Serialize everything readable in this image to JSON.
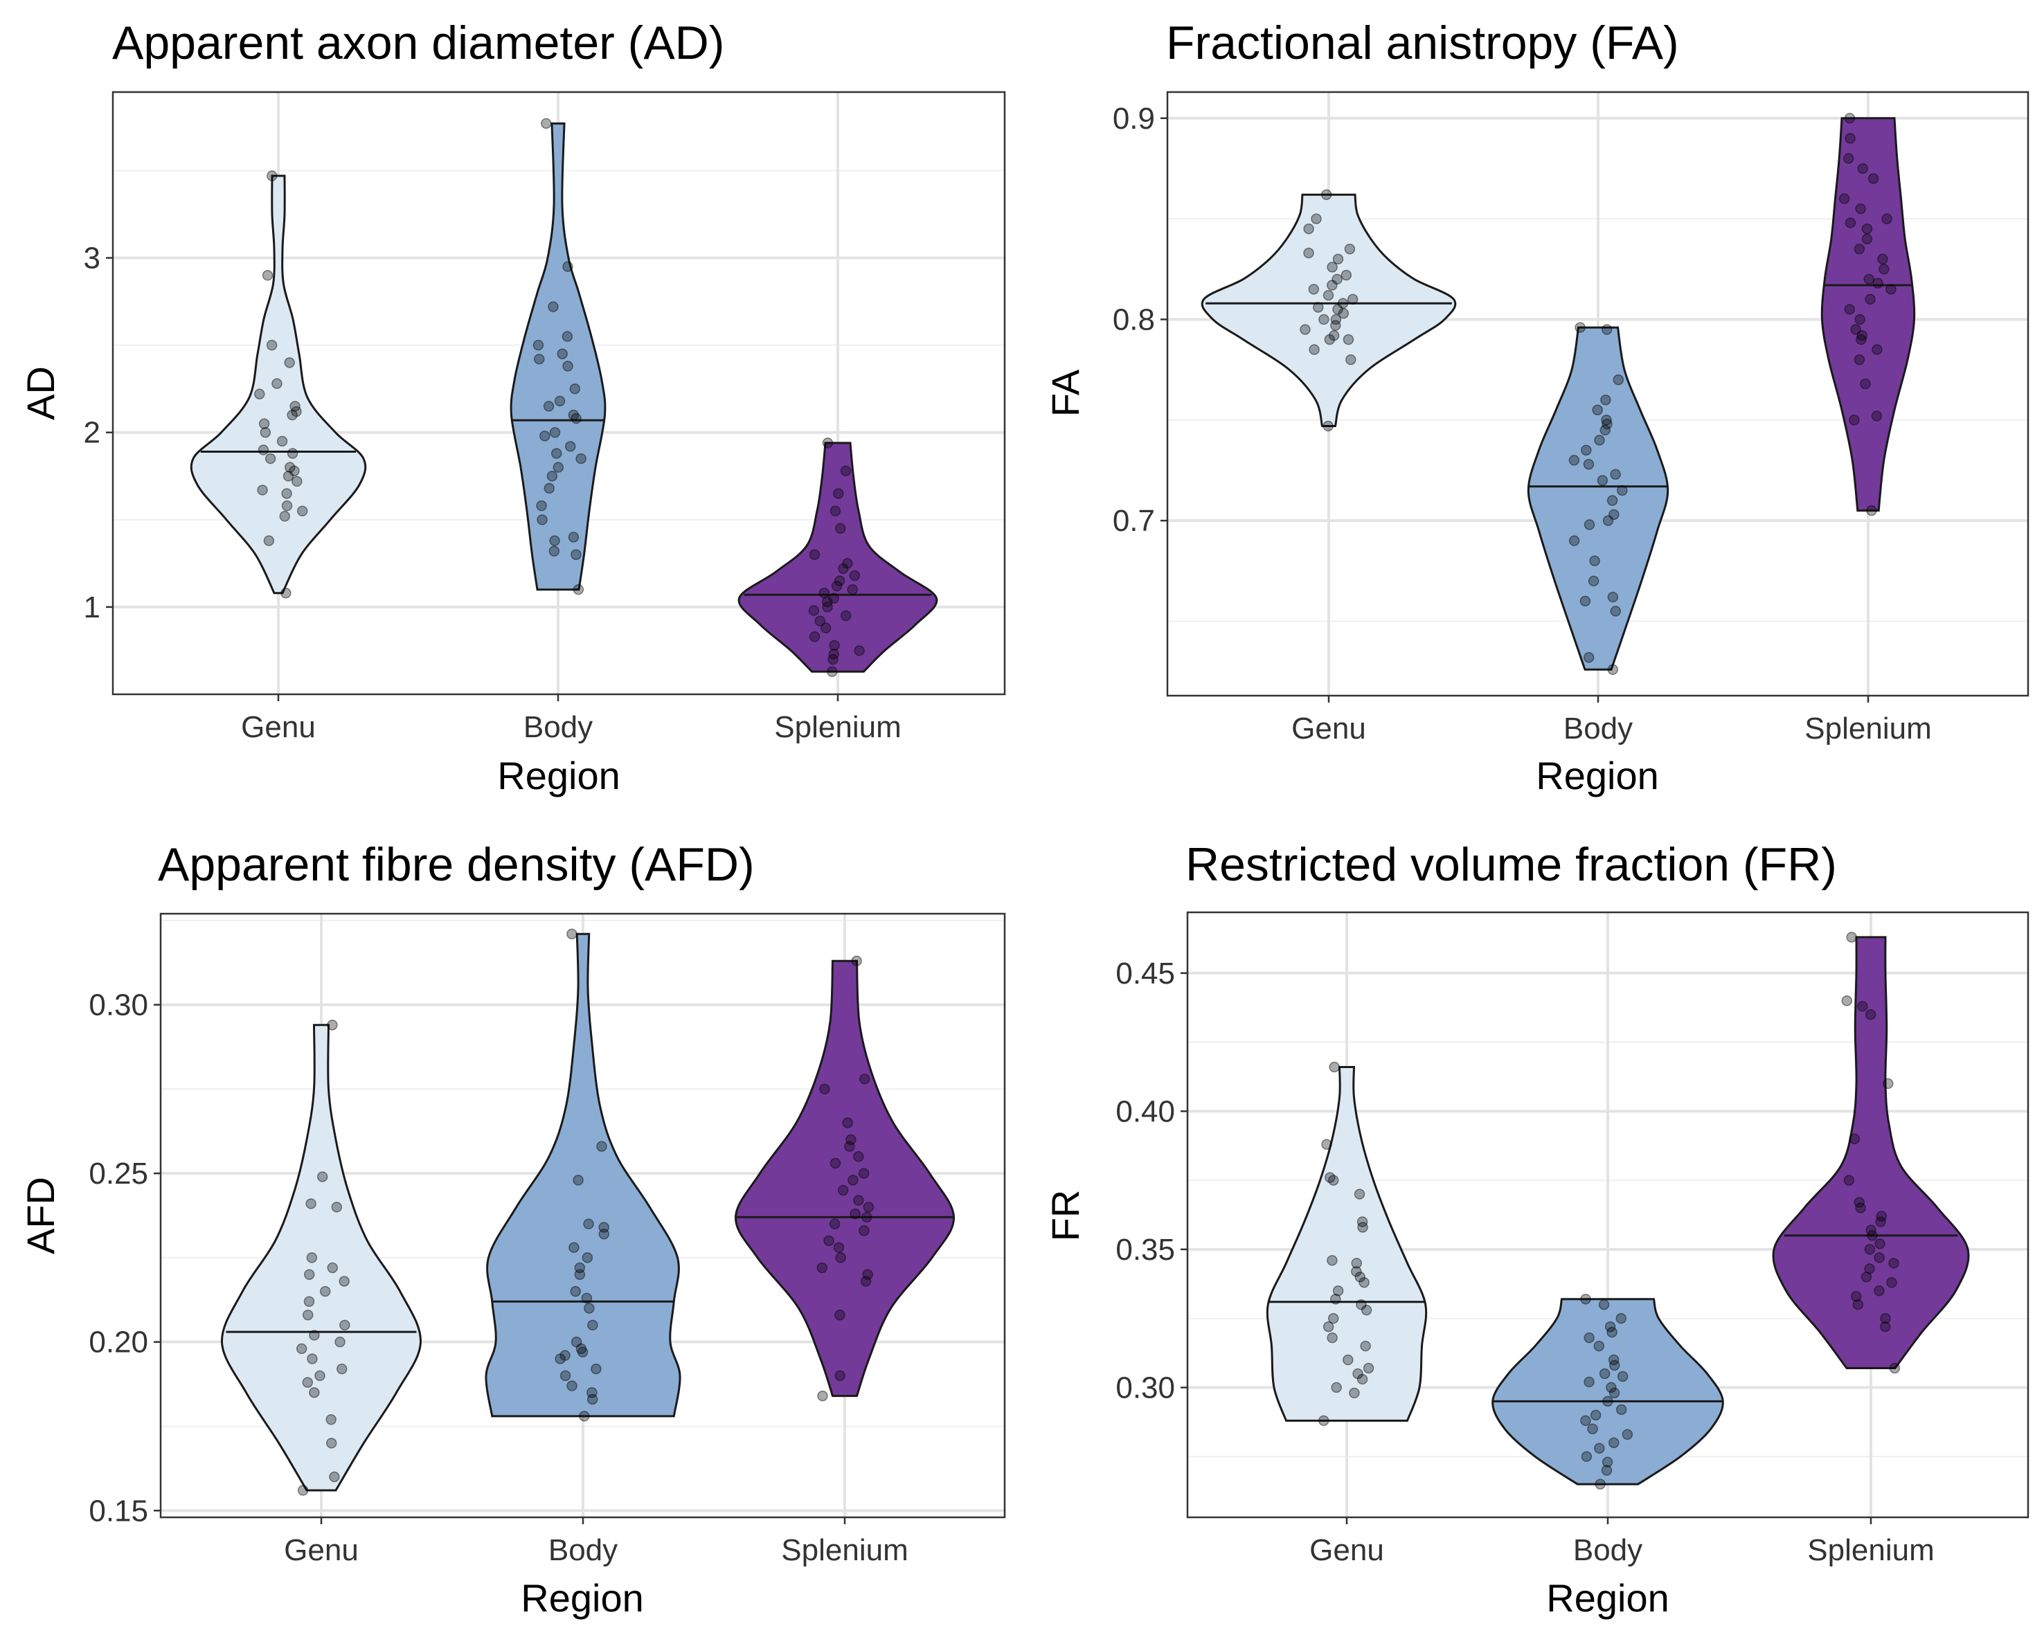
{
  "figure": {
    "panels": [
      {
        "id": "ad",
        "title": "Apparent axon diameter (AD)"
      },
      {
        "id": "fa",
        "title": "Fractional anistropy (FA)"
      },
      {
        "id": "afd",
        "title": "Apparent fibre density (AFD)"
      },
      {
        "id": "fr",
        "title": "Restricted volume fraction (FR)"
      }
    ]
  },
  "colors": {
    "Genu": "#dce9f3",
    "Body": "#8badd3",
    "Splenium": "#733a9a"
  },
  "chart_data": [
    {
      "type": "violin",
      "title": "Apparent axon diameter (AD)",
      "xlabel": "Region",
      "ylabel": "AD",
      "categories": [
        "Genu",
        "Body",
        "Splenium"
      ],
      "ylim": [
        0.5,
        3.95
      ],
      "yticks": [
        1,
        2,
        3
      ],
      "ytick_labels": [
        "1",
        "2",
        "3"
      ],
      "grid": true,
      "series": [
        {
          "name": "Genu",
          "min": 1.08,
          "max": 3.47,
          "median": 1.89,
          "density": [
            [
              1.08,
              0.04
            ],
            [
              1.3,
              0.22
            ],
            [
              1.5,
              0.5
            ],
            [
              1.7,
              0.78
            ],
            [
              1.85,
              0.82
            ],
            [
              2.0,
              0.55
            ],
            [
              2.2,
              0.28
            ],
            [
              2.45,
              0.2
            ],
            [
              2.65,
              0.14
            ],
            [
              2.85,
              0.05
            ],
            [
              3.05,
              0.04
            ],
            [
              3.25,
              0.06
            ],
            [
              3.47,
              0.06
            ]
          ],
          "points": [
            1.08,
            1.38,
            1.52,
            1.55,
            1.58,
            1.65,
            1.67,
            1.72,
            1.75,
            1.78,
            1.8,
            1.85,
            1.88,
            1.9,
            1.95,
            2.0,
            2.05,
            2.1,
            2.12,
            2.15,
            2.22,
            2.28,
            2.4,
            2.5,
            2.9,
            3.47
          ]
        },
        {
          "name": "Body",
          "min": 1.1,
          "max": 3.77,
          "median": 2.07,
          "density": [
            [
              1.1,
              0.2
            ],
            [
              1.3,
              0.25
            ],
            [
              1.55,
              0.3
            ],
            [
              1.8,
              0.36
            ],
            [
              2.1,
              0.45
            ],
            [
              2.3,
              0.42
            ],
            [
              2.55,
              0.32
            ],
            [
              2.8,
              0.2
            ],
            [
              3.0,
              0.1
            ],
            [
              3.3,
              0.04
            ],
            [
              3.77,
              0.06
            ]
          ],
          "points": [
            1.1,
            1.3,
            1.32,
            1.38,
            1.4,
            1.5,
            1.58,
            1.68,
            1.75,
            1.8,
            1.85,
            1.88,
            1.92,
            1.98,
            2.0,
            2.08,
            2.1,
            2.15,
            2.18,
            2.25,
            2.38,
            2.42,
            2.45,
            2.5,
            2.55,
            2.72,
            2.95,
            3.77
          ]
        },
        {
          "name": "Splenium",
          "min": 0.63,
          "max": 1.94,
          "median": 1.07,
          "density": [
            [
              0.63,
              0.25
            ],
            [
              0.75,
              0.45
            ],
            [
              0.9,
              0.75
            ],
            [
              1.05,
              0.95
            ],
            [
              1.2,
              0.6
            ],
            [
              1.35,
              0.3
            ],
            [
              1.55,
              0.2
            ],
            [
              1.75,
              0.15
            ],
            [
              1.94,
              0.12
            ]
          ],
          "points": [
            0.63,
            0.7,
            0.73,
            0.75,
            0.78,
            0.83,
            0.88,
            0.92,
            0.95,
            0.98,
            1.0,
            1.03,
            1.05,
            1.08,
            1.1,
            1.12,
            1.15,
            1.18,
            1.22,
            1.25,
            1.3,
            1.45,
            1.55,
            1.65,
            1.78,
            1.94
          ]
        }
      ]
    },
    {
      "type": "violin",
      "title": "Fractional anistropy (FA)",
      "xlabel": "Region",
      "ylabel": "FA",
      "categories": [
        "Genu",
        "Body",
        "Splenium"
      ],
      "ylim": [
        0.613,
        0.913
      ],
      "yticks": [
        0.7,
        0.8,
        0.9
      ],
      "ytick_labels": [
        "0.7",
        "0.8",
        "0.9"
      ],
      "grid": true,
      "series": [
        {
          "name": "Genu",
          "min": 0.747,
          "max": 0.862,
          "median": 0.808,
          "density": [
            [
              0.747,
              0.05
            ],
            [
              0.76,
              0.1
            ],
            [
              0.775,
              0.3
            ],
            [
              0.79,
              0.65
            ],
            [
              0.8,
              0.88
            ],
            [
              0.81,
              0.95
            ],
            [
              0.82,
              0.65
            ],
            [
              0.83,
              0.45
            ],
            [
              0.84,
              0.32
            ],
            [
              0.852,
              0.22
            ],
            [
              0.862,
              0.2
            ]
          ],
          "points": [
            0.747,
            0.78,
            0.785,
            0.79,
            0.79,
            0.792,
            0.795,
            0.797,
            0.8,
            0.8,
            0.803,
            0.805,
            0.806,
            0.808,
            0.81,
            0.812,
            0.815,
            0.817,
            0.82,
            0.822,
            0.826,
            0.83,
            0.833,
            0.835,
            0.845,
            0.85,
            0.862
          ]
        },
        {
          "name": "Body",
          "min": 0.626,
          "max": 0.796,
          "median": 0.717,
          "density": [
            [
              0.626,
              0.1
            ],
            [
              0.645,
              0.2
            ],
            [
              0.67,
              0.33
            ],
            [
              0.695,
              0.45
            ],
            [
              0.715,
              0.53
            ],
            [
              0.735,
              0.45
            ],
            [
              0.755,
              0.32
            ],
            [
              0.775,
              0.2
            ],
            [
              0.796,
              0.15
            ]
          ],
          "points": [
            0.626,
            0.632,
            0.655,
            0.66,
            0.662,
            0.67,
            0.68,
            0.69,
            0.698,
            0.7,
            0.703,
            0.71,
            0.715,
            0.72,
            0.723,
            0.728,
            0.73,
            0.735,
            0.74,
            0.745,
            0.748,
            0.75,
            0.755,
            0.76,
            0.77,
            0.795,
            0.796
          ]
        },
        {
          "name": "Splenium",
          "min": 0.705,
          "max": 0.9,
          "median": 0.817,
          "density": [
            [
              0.705,
              0.08
            ],
            [
              0.73,
              0.12
            ],
            [
              0.755,
              0.2
            ],
            [
              0.78,
              0.3
            ],
            [
              0.8,
              0.35
            ],
            [
              0.82,
              0.33
            ],
            [
              0.84,
              0.28
            ],
            [
              0.86,
              0.25
            ],
            [
              0.88,
              0.22
            ],
            [
              0.9,
              0.2
            ]
          ],
          "points": [
            0.705,
            0.75,
            0.752,
            0.768,
            0.78,
            0.785,
            0.79,
            0.792,
            0.795,
            0.8,
            0.805,
            0.81,
            0.815,
            0.818,
            0.82,
            0.825,
            0.83,
            0.835,
            0.84,
            0.845,
            0.848,
            0.85,
            0.855,
            0.86,
            0.87,
            0.875,
            0.88,
            0.89,
            0.9
          ]
        }
      ]
    },
    {
      "type": "violin",
      "title": "Apparent fibre density (AFD)",
      "xlabel": "Region",
      "ylabel": "AFD",
      "categories": [
        "Genu",
        "Body",
        "Splenium"
      ],
      "ylim": [
        0.148,
        0.327
      ],
      "yticks": [
        0.15,
        0.2,
        0.25,
        0.3
      ],
      "ytick_labels": [
        "0.15",
        "0.20",
        "0.25",
        "0.30"
      ],
      "grid": true,
      "series": [
        {
          "name": "Genu",
          "min": 0.156,
          "max": 0.294,
          "median": 0.203,
          "density": [
            [
              0.156,
              0.12
            ],
            [
              0.17,
              0.35
            ],
            [
              0.185,
              0.62
            ],
            [
              0.2,
              0.82
            ],
            [
              0.215,
              0.65
            ],
            [
              0.23,
              0.38
            ],
            [
              0.245,
              0.22
            ],
            [
              0.26,
              0.12
            ],
            [
              0.275,
              0.06
            ],
            [
              0.294,
              0.06
            ]
          ],
          "points": [
            0.156,
            0.16,
            0.17,
            0.177,
            0.185,
            0.188,
            0.19,
            0.192,
            0.195,
            0.198,
            0.2,
            0.202,
            0.205,
            0.208,
            0.212,
            0.215,
            0.218,
            0.22,
            0.222,
            0.225,
            0.24,
            0.241,
            0.249,
            0.294
          ]
        },
        {
          "name": "Body",
          "min": 0.178,
          "max": 0.321,
          "median": 0.212,
          "density": [
            [
              0.178,
              0.75
            ],
            [
              0.19,
              0.8
            ],
            [
              0.2,
              0.72
            ],
            [
              0.212,
              0.75
            ],
            [
              0.225,
              0.78
            ],
            [
              0.24,
              0.55
            ],
            [
              0.255,
              0.28
            ],
            [
              0.27,
              0.14
            ],
            [
              0.29,
              0.07
            ],
            [
              0.305,
              0.04
            ],
            [
              0.321,
              0.05
            ]
          ],
          "points": [
            0.178,
            0.183,
            0.185,
            0.187,
            0.19,
            0.192,
            0.195,
            0.196,
            0.197,
            0.198,
            0.2,
            0.205,
            0.21,
            0.213,
            0.215,
            0.22,
            0.222,
            0.225,
            0.228,
            0.232,
            0.234,
            0.235,
            0.248,
            0.258,
            0.321
          ]
        },
        {
          "name": "Splenium",
          "min": 0.184,
          "max": 0.313,
          "median": 0.237,
          "density": [
            [
              0.184,
              0.1
            ],
            [
              0.195,
              0.2
            ],
            [
              0.21,
              0.38
            ],
            [
              0.225,
              0.72
            ],
            [
              0.237,
              0.9
            ],
            [
              0.25,
              0.7
            ],
            [
              0.265,
              0.4
            ],
            [
              0.28,
              0.22
            ],
            [
              0.295,
              0.12
            ],
            [
              0.313,
              0.1
            ]
          ],
          "points": [
            0.184,
            0.19,
            0.208,
            0.218,
            0.22,
            0.222,
            0.225,
            0.228,
            0.23,
            0.233,
            0.235,
            0.237,
            0.238,
            0.24,
            0.242,
            0.245,
            0.248,
            0.25,
            0.253,
            0.255,
            0.258,
            0.26,
            0.265,
            0.275,
            0.278,
            0.313
          ]
        }
      ]
    },
    {
      "type": "violin",
      "title": "Restricted volume fraction (FR)",
      "xlabel": "Region",
      "ylabel": "FR",
      "categories": [
        "Genu",
        "Body",
        "Splenium"
      ],
      "ylim": [
        0.253,
        0.472
      ],
      "yticks": [
        0.3,
        0.35,
        0.4,
        0.45
      ],
      "ytick_labels": [
        "0.30",
        "0.35",
        "0.40",
        "0.45"
      ],
      "grid": true,
      "series": [
        {
          "name": "Genu",
          "min": 0.288,
          "max": 0.416,
          "median": 0.331,
          "density": [
            [
              0.288,
              0.5
            ],
            [
              0.3,
              0.6
            ],
            [
              0.315,
              0.62
            ],
            [
              0.33,
              0.65
            ],
            [
              0.345,
              0.5
            ],
            [
              0.36,
              0.35
            ],
            [
              0.375,
              0.22
            ],
            [
              0.39,
              0.12
            ],
            [
              0.405,
              0.06
            ],
            [
              0.416,
              0.06
            ]
          ],
          "points": [
            0.288,
            0.298,
            0.3,
            0.303,
            0.305,
            0.307,
            0.31,
            0.315,
            0.318,
            0.322,
            0.325,
            0.328,
            0.33,
            0.332,
            0.335,
            0.338,
            0.34,
            0.342,
            0.345,
            0.346,
            0.358,
            0.36,
            0.37,
            0.375,
            0.376,
            0.388,
            0.416
          ]
        },
        {
          "name": "Body",
          "min": 0.265,
          "max": 0.332,
          "median": 0.295,
          "density": [
            [
              0.265,
              0.25
            ],
            [
              0.275,
              0.6
            ],
            [
              0.285,
              0.85
            ],
            [
              0.295,
              0.95
            ],
            [
              0.305,
              0.82
            ],
            [
              0.315,
              0.6
            ],
            [
              0.325,
              0.42
            ],
            [
              0.332,
              0.38
            ]
          ],
          "points": [
            0.265,
            0.27,
            0.273,
            0.275,
            0.278,
            0.28,
            0.283,
            0.285,
            0.288,
            0.29,
            0.292,
            0.295,
            0.298,
            0.3,
            0.302,
            0.304,
            0.305,
            0.308,
            0.31,
            0.315,
            0.318,
            0.32,
            0.322,
            0.325,
            0.33,
            0.332
          ]
        },
        {
          "name": "Splenium",
          "min": 0.307,
          "max": 0.463,
          "median": 0.355,
          "density": [
            [
              0.307,
              0.2
            ],
            [
              0.32,
              0.42
            ],
            [
              0.335,
              0.7
            ],
            [
              0.35,
              0.8
            ],
            [
              0.365,
              0.55
            ],
            [
              0.38,
              0.25
            ],
            [
              0.395,
              0.15
            ],
            [
              0.41,
              0.12
            ],
            [
              0.43,
              0.13
            ],
            [
              0.45,
              0.12
            ],
            [
              0.463,
              0.12
            ]
          ],
          "points": [
            0.307,
            0.322,
            0.325,
            0.33,
            0.333,
            0.335,
            0.338,
            0.34,
            0.343,
            0.345,
            0.347,
            0.35,
            0.352,
            0.355,
            0.357,
            0.36,
            0.362,
            0.365,
            0.367,
            0.375,
            0.39,
            0.41,
            0.435,
            0.438,
            0.44,
            0.463
          ]
        }
      ]
    }
  ]
}
